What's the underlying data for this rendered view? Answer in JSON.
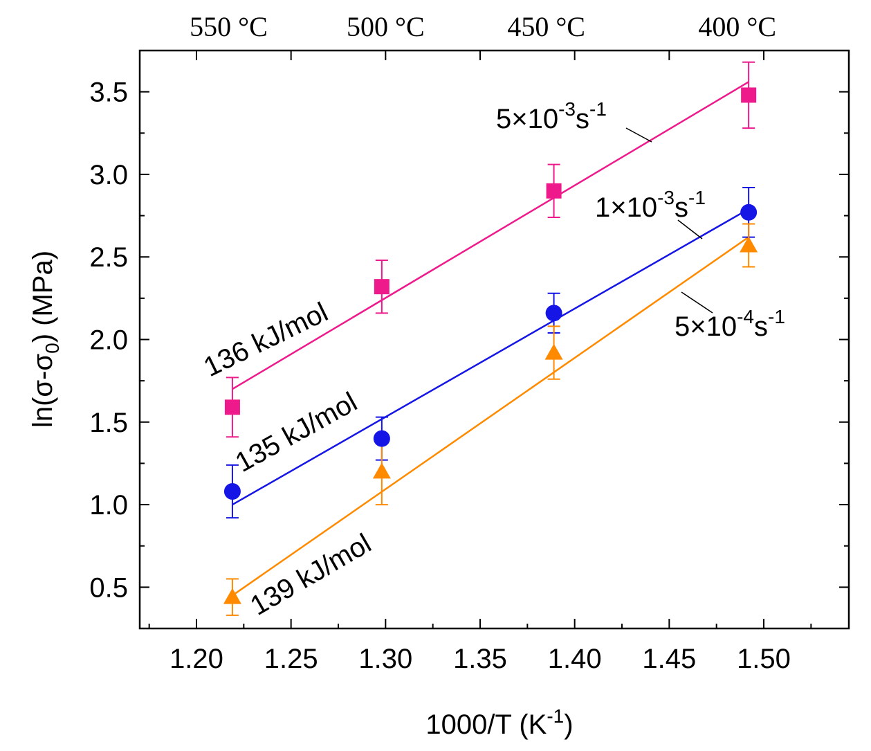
{
  "chart_data": {
    "type": "scatter",
    "title": "",
    "xlabel": "1000/T (K",
    "xlabel_sup": "-1",
    "xlabel_end": ")",
    "ylabel": "ln(σ-σ",
    "ylabel_sub": "0",
    "ylabel_end": ") (MPa)",
    "xlim": [
      1.17,
      1.545
    ],
    "ylim": [
      0.25,
      3.75
    ],
    "xticks": [
      1.2,
      1.25,
      1.3,
      1.35,
      1.4,
      1.45,
      1.5
    ],
    "xtick_labels": [
      "1.20",
      "1.25",
      "1.30",
      "1.35",
      "1.40",
      "1.45",
      "1.50"
    ],
    "yticks": [
      0.5,
      1.0,
      1.5,
      2.0,
      2.5,
      3.0,
      3.5
    ],
    "ytick_labels": [
      "0.5",
      "1.0",
      "1.5",
      "2.0",
      "2.5",
      "3.0",
      "3.5"
    ],
    "top_axis": {
      "positions": [
        1.217,
        1.3,
        1.385,
        1.486
      ],
      "labels": [
        "550 °C",
        "500 °C",
        "450 °C",
        "400 °C"
      ]
    },
    "series": [
      {
        "name": "5×10-3s-1",
        "label_base": "5×10",
        "label_exp1": "-3",
        "label_mid": "s",
        "label_exp2": "-1",
        "activation_energy": "136 kJ/mol",
        "marker": "square",
        "color": "#ee1a8c",
        "x": [
          1.219,
          1.298,
          1.389,
          1.492
        ],
        "y": [
          1.59,
          2.32,
          2.9,
          3.48
        ],
        "err": [
          0.18,
          0.16,
          0.16,
          0.2
        ],
        "fit": [
          [
            1.219,
            1.7
          ],
          [
            1.492,
            3.56
          ]
        ]
      },
      {
        "name": "1×10-3s-1",
        "label_base": "1×10",
        "label_exp1": "-3",
        "label_mid": "s",
        "label_exp2": "-1",
        "activation_energy": "135 kJ/mol",
        "marker": "circle",
        "color": "#1515e6",
        "x": [
          1.219,
          1.298,
          1.389,
          1.492
        ],
        "y": [
          1.08,
          1.4,
          2.16,
          2.77
        ],
        "err": [
          0.16,
          0.13,
          0.12,
          0.15
        ],
        "fit": [
          [
            1.219,
            1.0
          ],
          [
            1.492,
            2.79
          ]
        ]
      },
      {
        "name": "5×10-4s-1",
        "label_base": "5×10",
        "label_exp1": "-4",
        "label_mid": "s",
        "label_exp2": "-1",
        "activation_energy": "139 kJ/mol",
        "marker": "triangle",
        "color": "#ff8a00",
        "x": [
          1.219,
          1.298,
          1.389,
          1.492
        ],
        "y": [
          0.44,
          1.2,
          1.92,
          2.57
        ],
        "err": [
          0.11,
          0.2,
          0.16,
          0.13
        ],
        "fit": [
          [
            1.219,
            0.45
          ],
          [
            1.492,
            2.62
          ]
        ]
      }
    ]
  }
}
